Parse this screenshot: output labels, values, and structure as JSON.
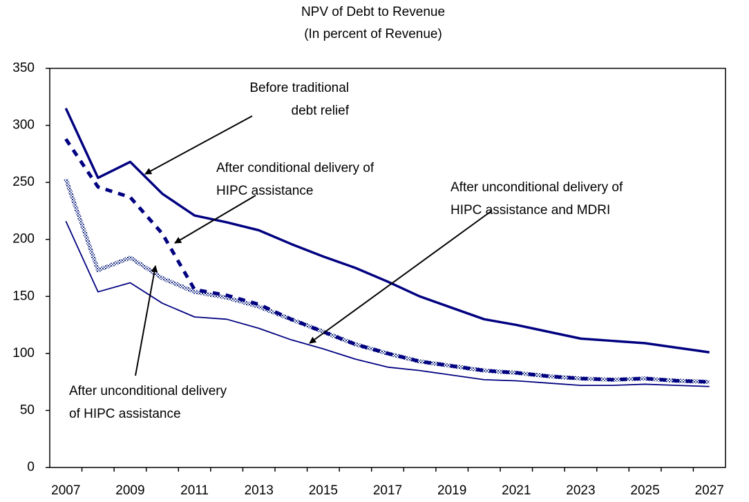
{
  "chart_data": {
    "type": "line",
    "title": "NPV of Debt to Revenue",
    "subtitle": "(In percent of Revenue)",
    "categories": [
      "2007",
      null,
      "2009",
      null,
      "2011",
      null,
      "2013",
      null,
      "2015",
      null,
      "2017",
      null,
      "2019",
      null,
      "2021",
      null,
      "2023",
      null,
      "2025",
      null,
      "2027"
    ],
    "ylim": [
      0,
      350
    ],
    "yticks": [
      0,
      50,
      100,
      150,
      200,
      250,
      300,
      350
    ],
    "grid": false,
    "series": [
      {
        "color": "#000080",
        "style": "solid-thick",
        "values": [
          315,
          254,
          268,
          240,
          221,
          215,
          208,
          196,
          185,
          175,
          163,
          150,
          140,
          130,
          125,
          119,
          113,
          111,
          109,
          105,
          101
        ]
      },
      {
        "color": "#000080",
        "style": "dashed",
        "values": [
          288,
          246,
          237,
          205,
          156,
          151,
          143,
          130,
          119,
          108,
          100,
          93,
          89,
          85,
          83,
          80,
          78,
          77,
          78,
          76,
          75
        ]
      },
      {
        "color": "#000080",
        "style": "textured",
        "values": [
          253,
          173,
          184,
          166,
          154,
          149,
          141,
          130,
          119,
          108,
          100,
          93,
          89,
          85,
          83,
          80,
          78,
          77,
          78,
          76,
          75
        ]
      },
      {
        "color": "#000080",
        "style": "solid-thin",
        "values": [
          216,
          154,
          162,
          144,
          132,
          130,
          122,
          112,
          104,
          95,
          88,
          85,
          81,
          77,
          76,
          74,
          72,
          72,
          73,
          72,
          71
        ]
      }
    ],
    "annotations": [
      {
        "lines": [
          "Before traditional",
          "debt relief"
        ]
      },
      {
        "lines": [
          "After conditional delivery of",
          "HIPC assistance"
        ]
      },
      {
        "lines": [
          "After unconditional delivery of",
          "HIPC assistance and MDRI"
        ]
      },
      {
        "lines": [
          "After unconditional delivery",
          "of HIPC assistance"
        ]
      }
    ]
  }
}
